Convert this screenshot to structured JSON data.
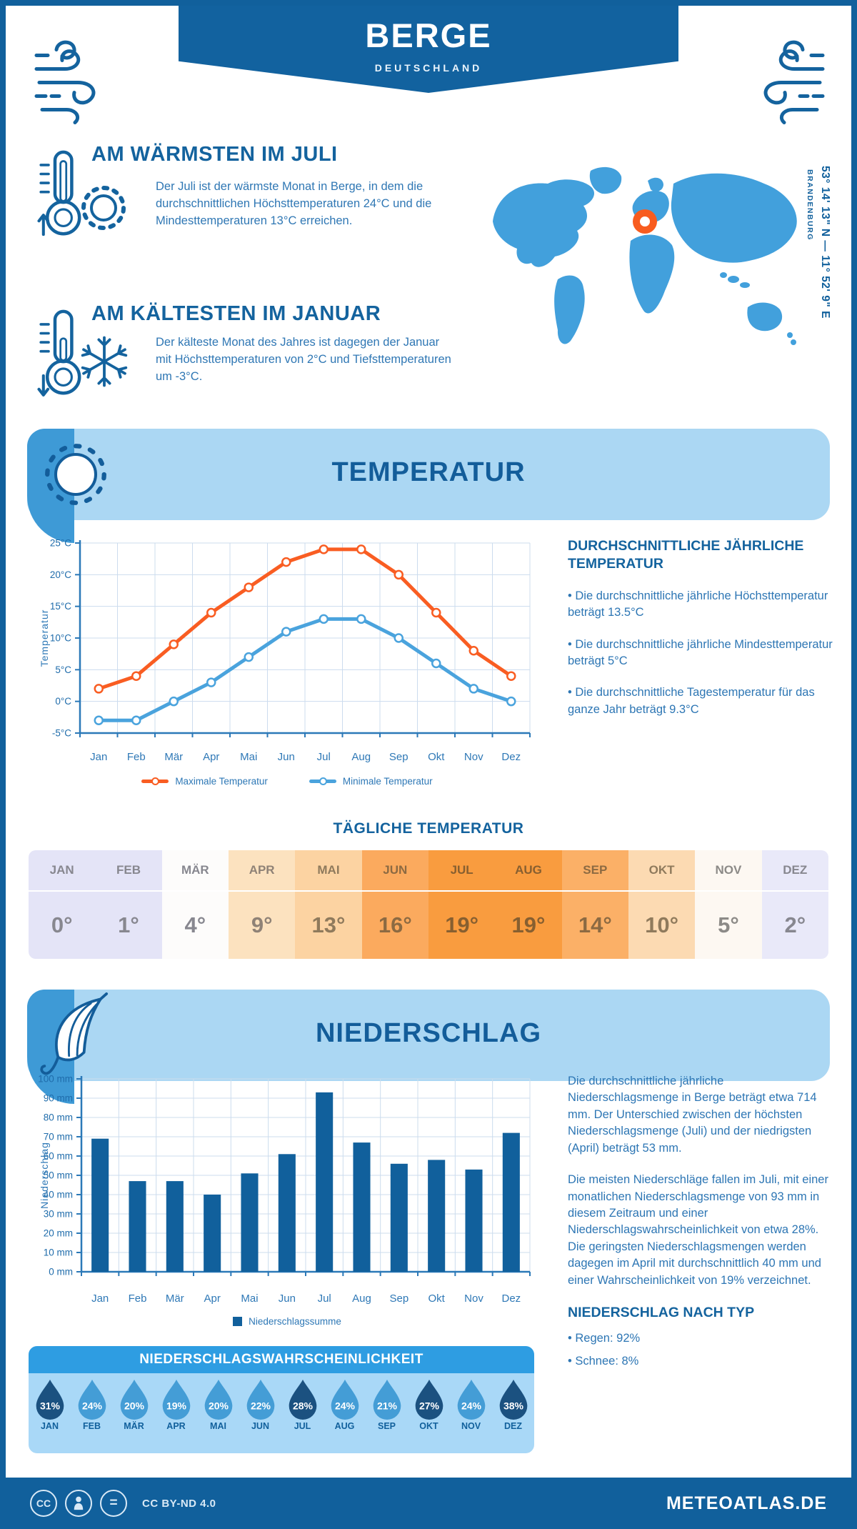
{
  "palette": {
    "primary": "#11609c",
    "banner_light": "#abd7f3",
    "strip_blue": "#3e9ad6",
    "panel_header": "#2e9de2",
    "panel_body": "#a9d8f7",
    "max_line": "#f95d22",
    "min_line": "#4aa3dd",
    "bar": "#11609c",
    "drop_dark": "#1b5180",
    "drop_medium": "#449dd6",
    "marker_orange": "#f85c1f",
    "map_blue": "#42a0dc"
  },
  "header": {
    "title": "BERGE",
    "subtitle": "DEUTSCHLAND"
  },
  "warmest": {
    "title": "AM WÄRMSTEN IM JULI",
    "text": "Der Juli ist der wärmste Monat in Berge, in dem die durchschnittlichen Höchsttemperaturen 24°C und die Mindesttemperaturen 13°C erreichen."
  },
  "coldest": {
    "title": "AM KÄLTESTEN IM JANUAR",
    "text": "Der kälteste Monat des Jahres ist dagegen der Januar mit Höchsttemperaturen von 2°C und Tiefsttemperaturen um -3°C."
  },
  "map": {
    "coordinates": "53° 14' 13\" N — 11° 52' 9\" E",
    "region": "BRANDENBURG"
  },
  "temperature_section": {
    "title": "TEMPERATUR"
  },
  "annual": {
    "heading": "DURCHSCHNITTLICHE JÄHRLICHE TEMPERATUR",
    "bullets": [
      "• Die durchschnittliche jährliche Höchsttemperatur beträgt 13.5°C",
      "• Die durchschnittliche jährliche Mindesttemperatur beträgt 5°C",
      "• Die durchschnittliche Tagestemperatur für das ganze Jahr beträgt 9.3°C"
    ]
  },
  "chart_data": [
    {
      "type": "line",
      "title": "Temperatur",
      "categories": [
        "Jan",
        "Feb",
        "Mär",
        "Apr",
        "Mai",
        "Jun",
        "Jul",
        "Aug",
        "Sep",
        "Okt",
        "Nov",
        "Dez"
      ],
      "series": [
        {
          "name": "Maximale Temperatur",
          "color": "#f95d22",
          "values": [
            2,
            4,
            9,
            14,
            18,
            22,
            24,
            24,
            20,
            14,
            8,
            4
          ]
        },
        {
          "name": "Minimale Temperatur",
          "color": "#4aa3dd",
          "values": [
            -3,
            -3,
            0,
            3,
            7,
            11,
            13,
            13,
            10,
            6,
            2,
            0
          ]
        }
      ],
      "ylabel": "Temperatur",
      "ylim": [
        -5,
        25
      ],
      "ytick_step": 5,
      "ytick_suffix": "°C",
      "grid": true,
      "legend_position": "bottom"
    },
    {
      "type": "bar",
      "title": "Niederschlag",
      "categories": [
        "Jan",
        "Feb",
        "Mär",
        "Apr",
        "Mai",
        "Jun",
        "Jul",
        "Aug",
        "Sep",
        "Okt",
        "Nov",
        "Dez"
      ],
      "name": "Niederschlagssumme",
      "color": "#11609c",
      "values": [
        69,
        47,
        47,
        40,
        51,
        61,
        93,
        67,
        56,
        58,
        53,
        72
      ],
      "ylabel": "Niederschlag",
      "ylim": [
        0,
        100
      ],
      "ytick_step": 10,
      "ytick_suffix": " mm",
      "grid": true,
      "legend_position": "bottom"
    },
    {
      "type": "table",
      "title": "TÄGLICHE TEMPERATUR",
      "categories": [
        "JAN",
        "FEB",
        "MÄR",
        "APR",
        "MAI",
        "JUN",
        "JUL",
        "AUG",
        "SEP",
        "OKT",
        "NOV",
        "DEZ"
      ],
      "values": [
        "0°",
        "1°",
        "4°",
        "9°",
        "13°",
        "16°",
        "19°",
        "19°",
        "14°",
        "10°",
        "5°",
        "2°"
      ]
    },
    {
      "type": "table",
      "title": "NIEDERSCHLAGSWAHRSCHEINLICHKEIT",
      "categories": [
        "JAN",
        "FEB",
        "MÄR",
        "APR",
        "MAI",
        "JUN",
        "JUL",
        "AUG",
        "SEP",
        "OKT",
        "NOV",
        "DEZ"
      ],
      "values": [
        31,
        24,
        20,
        19,
        20,
        22,
        28,
        24,
        21,
        27,
        24,
        38
      ]
    }
  ],
  "daily_table": {
    "title": "TÄGLICHE TEMPERATUR",
    "columns": [
      {
        "month": "JAN",
        "value": "0°",
        "bg": "#e4e4f7",
        "fg": "#87878f"
      },
      {
        "month": "FEB",
        "value": "1°",
        "bg": "#e4e4f7",
        "fg": "#87878f"
      },
      {
        "month": "MÄR",
        "value": "4°",
        "bg": "#fdfcfb",
        "fg": "#87878f"
      },
      {
        "month": "APR",
        "value": "9°",
        "bg": "#fce2bf",
        "fg": "#8f8276"
      },
      {
        "month": "MAI",
        "value": "13°",
        "bg": "#fcd3a2",
        "fg": "#8f7a5c"
      },
      {
        "month": "JUN",
        "value": "16°",
        "bg": "#fbaa5e",
        "fg": "#8c6a42"
      },
      {
        "month": "JUL",
        "value": "19°",
        "bg": "#f99c3f",
        "fg": "#875f30"
      },
      {
        "month": "AUG",
        "value": "19°",
        "bg": "#f99c3f",
        "fg": "#875f30"
      },
      {
        "month": "SEP",
        "value": "14°",
        "bg": "#fbb067",
        "fg": "#8c6a42"
      },
      {
        "month": "OKT",
        "value": "10°",
        "bg": "#fcdab2",
        "fg": "#8f7a5c"
      },
      {
        "month": "NOV",
        "value": "5°",
        "bg": "#fdf8f2",
        "fg": "#8c8a87"
      },
      {
        "month": "DEZ",
        "value": "2°",
        "bg": "#e9e9f9",
        "fg": "#87878f"
      }
    ]
  },
  "precipitation_section": {
    "title": "NIEDERSCHLAG",
    "p1": "Die durchschnittliche jährliche Niederschlagsmenge in Berge beträgt etwa 714 mm. Der Unterschied zwischen der höchsten Niederschlagsmenge (Juli) und der niedrigsten (April) beträgt 53 mm.",
    "p2": "Die meisten Niederschläge fallen im Juli, mit einer monatlichen Niederschlagsmenge von 93 mm in diesem Zeitraum und einer Niederschlagswahrscheinlichkeit von etwa 28%. Die geringsten Niederschlagsmengen werden dagegen im April mit durchschnittlich 40 mm und einer Wahrscheinlichkeit von 19% verzeichnet.",
    "type_heading": "NIEDERSCHLAG NACH TYP",
    "type_bullets": [
      "• Regen: 92%",
      "• Schnee: 8%"
    ]
  },
  "probability": {
    "title": "NIEDERSCHLAGSWAHRSCHEINLICHKEIT",
    "droplets": [
      {
        "month": "JAN",
        "value": "31%",
        "dark": true
      },
      {
        "month": "FEB",
        "value": "24%",
        "dark": false
      },
      {
        "month": "MÄR",
        "value": "20%",
        "dark": false
      },
      {
        "month": "APR",
        "value": "19%",
        "dark": false
      },
      {
        "month": "MAI",
        "value": "20%",
        "dark": false
      },
      {
        "month": "JUN",
        "value": "22%",
        "dark": false
      },
      {
        "month": "JUL",
        "value": "28%",
        "dark": true
      },
      {
        "month": "AUG",
        "value": "24%",
        "dark": false
      },
      {
        "month": "SEP",
        "value": "21%",
        "dark": false
      },
      {
        "month": "OKT",
        "value": "27%",
        "dark": true
      },
      {
        "month": "NOV",
        "value": "24%",
        "dark": false
      },
      {
        "month": "DEZ",
        "value": "38%",
        "dark": true
      }
    ]
  },
  "footer": {
    "license": "CC BY-ND 4.0",
    "site": "METEOATLAS.DE"
  }
}
